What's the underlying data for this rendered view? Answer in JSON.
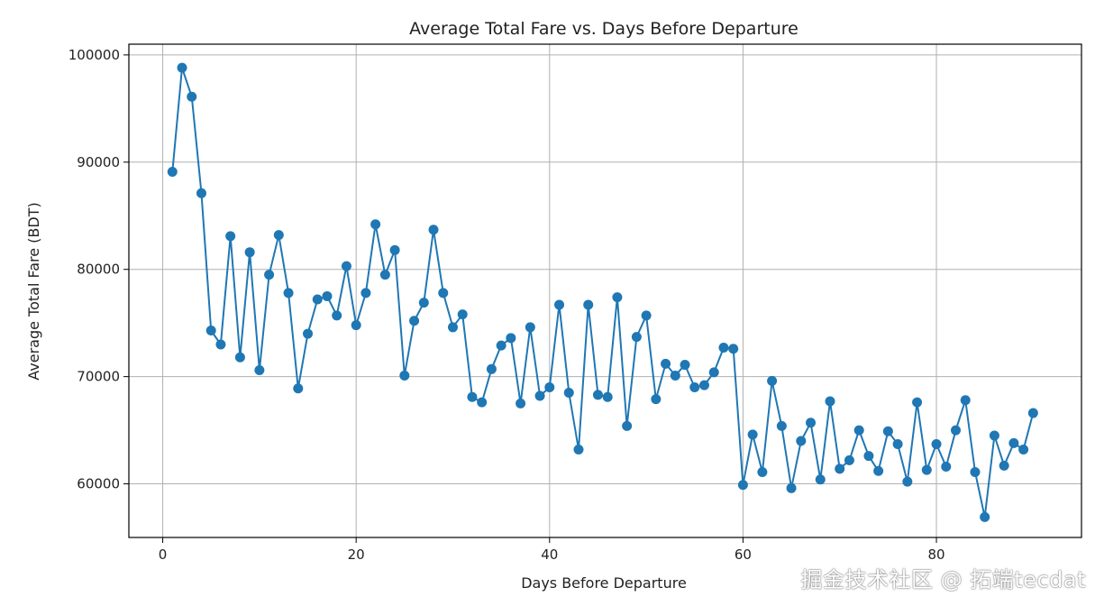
{
  "chart_data": {
    "type": "line",
    "title": "Average Total Fare vs. Days Before Departure",
    "xlabel": "Days Before Departure",
    "ylabel": "Average Total Fare (BDT)",
    "xlim": [
      -3.5,
      95
    ],
    "ylim": [
      55000,
      101000
    ],
    "xticks": [
      0,
      20,
      40,
      60,
      80
    ],
    "yticks": [
      60000,
      70000,
      80000,
      90000,
      100000
    ],
    "grid": true,
    "marker": "circle",
    "line_color": "#1f77b4",
    "series": [
      {
        "name": "Average Total Fare",
        "x": [
          1,
          2,
          3,
          4,
          5,
          6,
          7,
          8,
          9,
          10,
          11,
          12,
          13,
          14,
          15,
          16,
          17,
          18,
          19,
          20,
          21,
          22,
          23,
          24,
          25,
          26,
          27,
          28,
          29,
          30,
          31,
          32,
          33,
          34,
          35,
          36,
          37,
          38,
          39,
          40,
          41,
          42,
          43,
          44,
          45,
          46,
          47,
          48,
          49,
          50,
          51,
          52,
          53,
          54,
          55,
          56,
          57,
          58,
          59,
          60,
          61,
          62,
          63,
          64,
          65,
          66,
          67,
          68,
          69,
          70,
          71,
          72,
          73,
          74,
          75,
          76,
          77,
          78,
          79,
          80,
          81,
          82,
          83,
          84,
          85,
          86,
          87,
          88,
          89,
          90
        ],
        "y": [
          89100,
          98800,
          96100,
          87100,
          74300,
          73000,
          83100,
          71800,
          81600,
          70600,
          79500,
          83200,
          77800,
          68900,
          74000,
          77200,
          77500,
          75700,
          80300,
          74800,
          77800,
          84200,
          79500,
          81800,
          70100,
          75200,
          76900,
          83700,
          77800,
          74600,
          75800,
          68100,
          67600,
          70700,
          72900,
          73600,
          67500,
          74600,
          68200,
          69000,
          76700,
          68500,
          63200,
          76700,
          68300,
          68100,
          77400,
          65400,
          73700,
          75700,
          67900,
          71200,
          70100,
          71100,
          69000,
          69200,
          70400,
          72700,
          72600,
          59900,
          64600,
          61100,
          69600,
          65400,
          59600,
          64000,
          65700,
          60400,
          67700,
          61400,
          62200,
          65000,
          62600,
          61200,
          64900,
          63700,
          60200,
          67600,
          61300,
          63700,
          61600,
          65000,
          67800,
          61100,
          56900,
          64500,
          61700,
          63800,
          63200,
          66600
        ]
      }
    ]
  },
  "watermark": "掘金技术社区 @ 拓端tecdat"
}
